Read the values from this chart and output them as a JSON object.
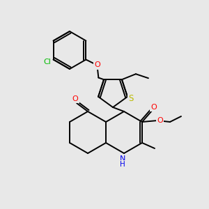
{
  "bg": "#e8e8e8",
  "lw": 1.4,
  "fs": 7.5,
  "colors": {
    "Cl": "#00bb00",
    "O": "#ff0000",
    "S": "#bbbb00",
    "N": "#0000ee",
    "C": "#000000"
  }
}
